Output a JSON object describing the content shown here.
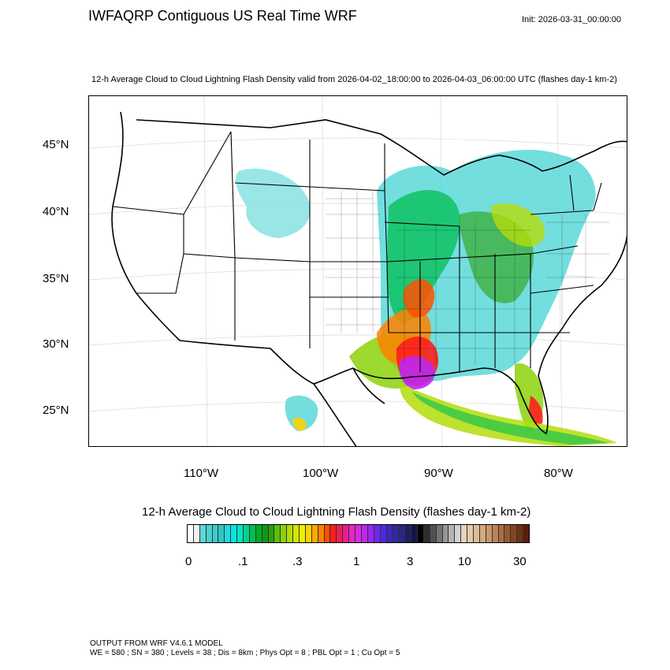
{
  "header": {
    "title": "IWFAQRP Contiguous US Real Time WRF",
    "init": "Init: 2026-03-31_00:00:00",
    "subtitle": "12-h Average Cloud to Cloud Lightning Flash Density valid from 2026-04-02_18:00:00 to 2026-04-03_06:00:00 UTC   (flashes day-1 km-2)"
  },
  "map": {
    "lat_labels": [
      "45°N",
      "40°N",
      "35°N",
      "30°N",
      "25°N"
    ],
    "lon_labels": [
      "110°W",
      "100°W",
      "90°W",
      "80°W"
    ]
  },
  "colorbar": {
    "title": "12-h Average Cloud to Cloud Lightning Flash Density  (flashes day-1 km-2)",
    "labels": [
      "0",
      ".1",
      ".3",
      "1",
      "3",
      "10",
      "30"
    ],
    "colors": [
      "#ffffff",
      "#f2f2f2",
      "#5ad8d8",
      "#46d2d2",
      "#3ccccc",
      "#2dc6c6",
      "#1edcdc",
      "#00e6e6",
      "#00e6be",
      "#00d28c",
      "#00be50",
      "#00aa28",
      "#129616",
      "#2da00a",
      "#5abe0a",
      "#8cd20a",
      "#b4dc0a",
      "#d2e60a",
      "#f0f000",
      "#ffd200",
      "#ffaa00",
      "#ff8200",
      "#ff5000",
      "#ff1e1e",
      "#f01e50",
      "#e61e8c",
      "#e628be",
      "#dc28e6",
      "#be28f0",
      "#9628f0",
      "#6e28e6",
      "#5028dc",
      "#3c28be",
      "#3228a0",
      "#282882",
      "#1e1e64",
      "#141446",
      "#000000",
      "#2d2d2d",
      "#505050",
      "#737373",
      "#969696",
      "#b4b4b4",
      "#d2d2d2",
      "#e6d2be",
      "#e6c8aa",
      "#dcbe96",
      "#d2aa82",
      "#c8966e",
      "#be825a",
      "#aa6e46",
      "#965a32",
      "#82461e",
      "#6e3214",
      "#5a1e0a"
    ]
  },
  "footer": {
    "line1": "OUTPUT FROM WRF V4.6.1 MODEL",
    "line2": "WE = 580 ; SN = 380 ; Levels = 38 ; Dis = 8km ; Phys Opt = 8 ; PBL Opt = 1 ; Cu Opt = 5"
  }
}
